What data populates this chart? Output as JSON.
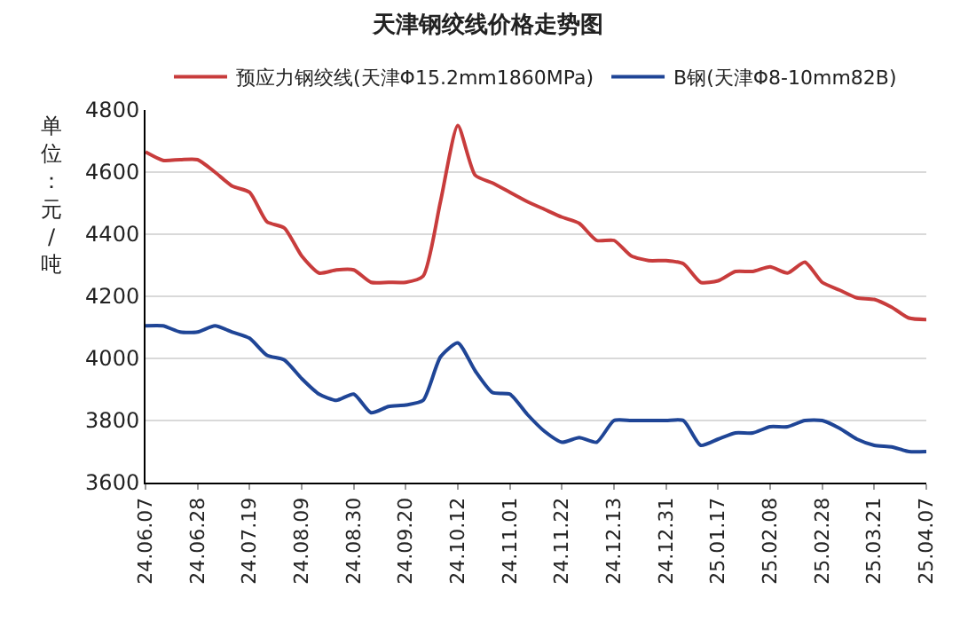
{
  "chart_data": {
    "type": "line",
    "title": "天津钢绞线价格走势图",
    "ylabel": "单位：元/吨",
    "categories": [
      "24.06.07",
      null,
      null,
      "24.06.28",
      null,
      null,
      "24.07.19",
      null,
      null,
      "24.08.09",
      null,
      null,
      "24.08.30",
      null,
      null,
      "24.09.20",
      null,
      null,
      "24.10.12",
      null,
      null,
      "24.11.01",
      null,
      null,
      "24.11.22",
      null,
      null,
      "24.12.13",
      null,
      null,
      "24.12.31",
      null,
      null,
      "25.01.17",
      null,
      null,
      "25.02.08",
      null,
      null,
      "25.02.28",
      null,
      null,
      "25.03.21",
      null,
      null,
      "25.04.07"
    ],
    "series": [
      {
        "name": "预应力钢绞线(天津Φ15.2mm1860MPa)",
        "color": "#c83c3c",
        "values": [
          4665,
          4638,
          4640,
          4640,
          4600,
          4555,
          4535,
          4440,
          4420,
          4330,
          4275,
          4285,
          4285,
          4245,
          4245,
          4245,
          4265,
          4505,
          4750,
          4590,
          4565,
          4535,
          4505,
          4480,
          4455,
          4435,
          4380,
          4380,
          4330,
          4315,
          4315,
          4305,
          4245,
          4250,
          4280,
          4280,
          4295,
          4275,
          4310,
          4245,
          4220,
          4195,
          4190,
          4165,
          4130,
          4125
        ]
      },
      {
        "name": "B钢(天津Φ8-10mm82B)",
        "color": "#1f4596",
        "values": [
          4105,
          4105,
          4085,
          4085,
          4105,
          4085,
          4065,
          4010,
          3995,
          3935,
          3885,
          3865,
          3885,
          3825,
          3845,
          3850,
          3865,
          4005,
          4050,
          3960,
          3890,
          3885,
          3820,
          3765,
          3730,
          3745,
          3730,
          3800,
          3800,
          3800,
          3800,
          3800,
          3720,
          3740,
          3760,
          3760,
          3780,
          3780,
          3800,
          3800,
          3775,
          3740,
          3720,
          3715,
          3700,
          3700
        ]
      }
    ],
    "ylim": [
      3600,
      4800
    ],
    "yticks": [
      3600,
      3800,
      4000,
      4200,
      4400,
      4600,
      4800
    ],
    "grid": "y",
    "legend": "top",
    "marker": "none",
    "line_style": "solid"
  }
}
